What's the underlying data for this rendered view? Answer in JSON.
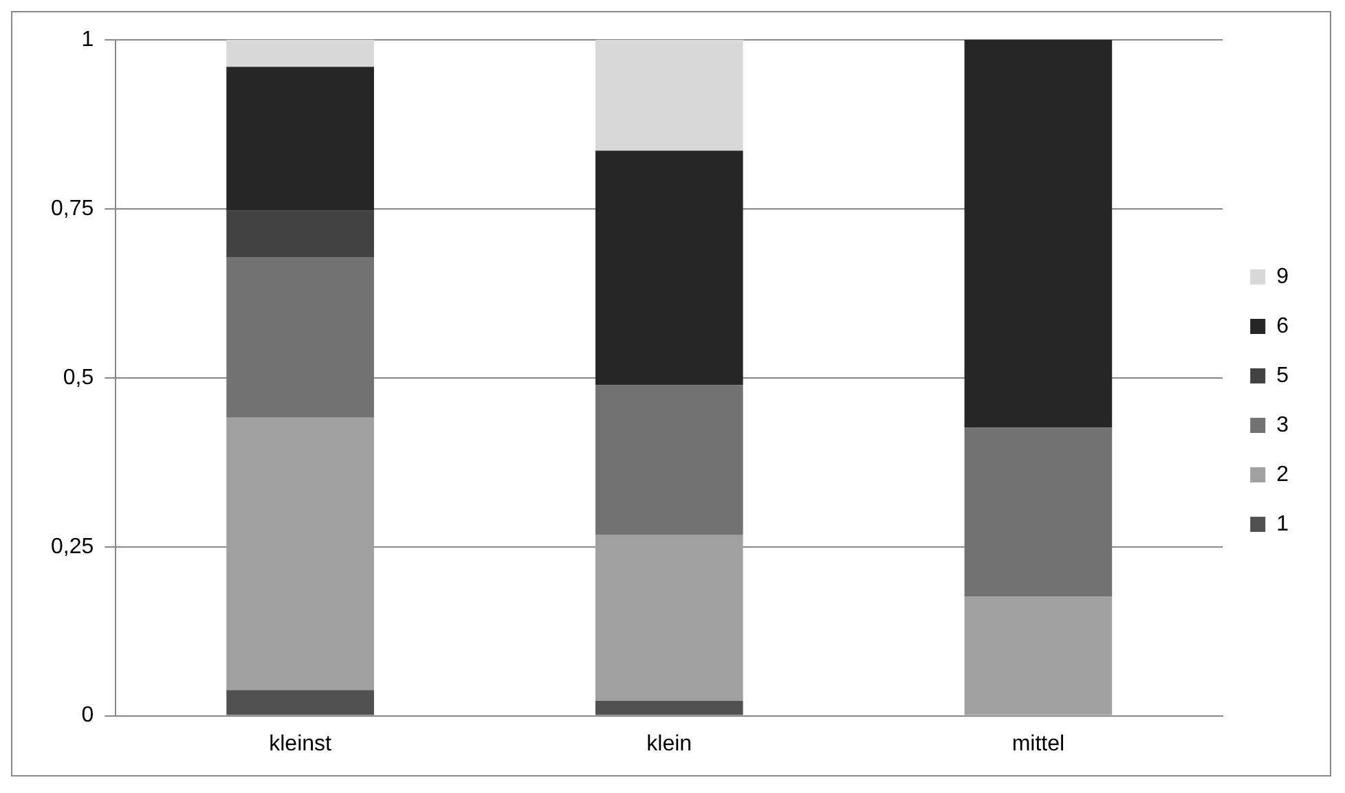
{
  "chart_data": {
    "type": "bar",
    "stacked": true,
    "categories": [
      "kleinst",
      "klein",
      "mittel"
    ],
    "series": [
      {
        "name": "1",
        "color": "#505050",
        "values": [
          0.038,
          0.022,
          0
        ]
      },
      {
        "name": "2",
        "color": "#a0a0a0",
        "values": [
          0.403,
          0.246,
          0.176
        ]
      },
      {
        "name": "3",
        "color": "#727272",
        "values": [
          0.237,
          0.221,
          0.25
        ]
      },
      {
        "name": "5",
        "color": "#424242",
        "values": [
          0.069,
          0,
          0
        ]
      },
      {
        "name": "6",
        "color": "#262626",
        "values": [
          0.213,
          0.347,
          0.574
        ]
      },
      {
        "name": "9",
        "color": "#d8d8d8",
        "values": [
          0.04,
          0.164,
          0
        ]
      }
    ],
    "ylim": [
      0,
      1
    ],
    "yticks": [
      0,
      {
        "value": 0.25,
        "label": "0,25"
      },
      {
        "value": 0.5,
        "label": "0,5"
      },
      {
        "value": 0.75,
        "label": "0,75"
      },
      1
    ],
    "grid": "y",
    "legend": "right"
  }
}
